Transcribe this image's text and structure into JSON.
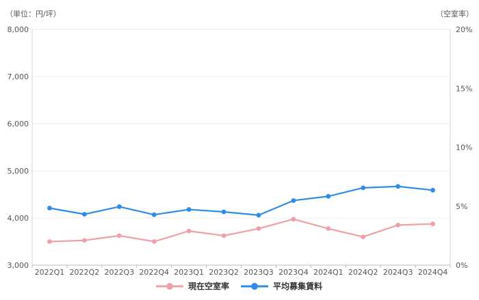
{
  "chart_data": {
    "type": "line",
    "left_unit_label": "（単位：円/坪）",
    "right_unit_label": "（空室率）",
    "categories": [
      "2022Q1",
      "2022Q2",
      "2022Q3",
      "2022Q4",
      "2023Q1",
      "2023Q2",
      "2023Q3",
      "2023Q4",
      "2024Q1",
      "2024Q2",
      "2024Q3",
      "2024Q4"
    ],
    "y_left": {
      "min": 3000,
      "max": 8000,
      "ticks": [
        "3,000",
        "4,000",
        "5,000",
        "6,000",
        "7,000",
        "8,000"
      ]
    },
    "y_right": {
      "min": 0,
      "max": 20,
      "ticks": [
        "0%",
        "5%",
        "10%",
        "15%",
        "20%"
      ]
    },
    "grid": true,
    "legend_position": "bottom",
    "series": [
      {
        "name": "現在空室率",
        "axis": "right",
        "color": "#f0a0a8",
        "values": [
          2.0,
          2.1,
          2.5,
          2.0,
          2.9,
          2.5,
          3.1,
          3.9,
          3.1,
          2.4,
          3.4,
          3.5
        ]
      },
      {
        "name": "平均募集賃料",
        "axis": "left",
        "color": "#2e8be6",
        "values": [
          4210,
          4080,
          4240,
          4070,
          4180,
          4130,
          4060,
          4370,
          4460,
          4640,
          4670,
          4590
        ]
      }
    ]
  }
}
